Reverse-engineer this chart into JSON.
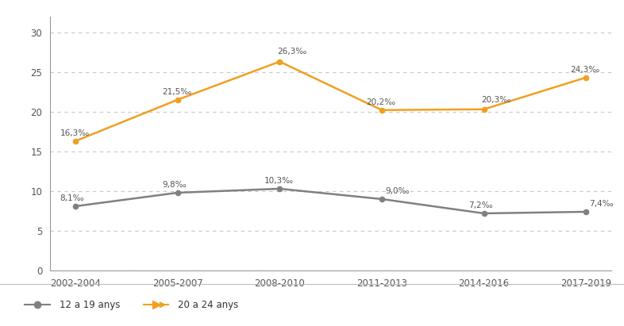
{
  "categories": [
    "2002-2004",
    "2005-2007",
    "2008-2010",
    "2011-2013",
    "2014-2016",
    "2017-2019"
  ],
  "series_12_19": [
    8.1,
    9.8,
    10.3,
    9.0,
    7.2,
    7.4
  ],
  "series_20_24": [
    16.3,
    21.5,
    26.3,
    20.2,
    20.3,
    24.3
  ],
  "labels_12_19": [
    "8,1‰",
    "9,8‰",
    "10,3‰",
    "9,0‰",
    "7,2‰",
    "7,4‰"
  ],
  "labels_20_24": [
    "16,3‰",
    "21,5‰",
    "26,3‰",
    "20,2‰",
    "20,3‰",
    "24,3‰"
  ],
  "color_12_19": "#808080",
  "color_20_24": "#f0a020",
  "ylim": [
    0,
    32
  ],
  "yticks": [
    0,
    5,
    10,
    15,
    20,
    25,
    30
  ],
  "legend_label_12_19": "12 a 19 anys",
  "legend_label_20_24": "20 a 24 anys",
  "background_color": "#ffffff",
  "grid_color": "#c8c8c8",
  "legend_bg_color": "#e0e0e0",
  "spine_color": "#999999",
  "tick_color": "#555555",
  "label_color": "#555555"
}
